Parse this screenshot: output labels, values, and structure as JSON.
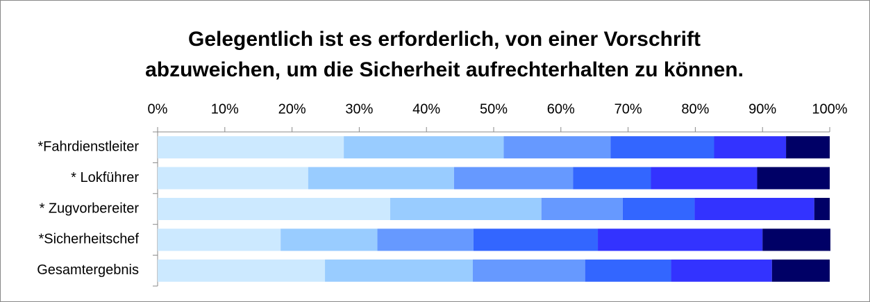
{
  "chart_data": {
    "type": "stacked_bar_horizontal",
    "title": [
      "Gelegentlich ist es erforderlich, von einer Vorschrift",
      "abzuweichen, um die Sicherheit aufrechterhalten zu können."
    ],
    "categories": [
      "*Fahrdienstleiter",
      "* Lokführer",
      "* Zugvorbereiter",
      "*Sicherheitschef",
      "Gesamtergebnis"
    ],
    "series": [
      {
        "color": "#cce9ff",
        "values": [
          27.7,
          22.4,
          34.6,
          18.3,
          24.9
        ]
      },
      {
        "color": "#99ccff",
        "values": [
          23.8,
          21.7,
          22.5,
          14.4,
          22.0
        ]
      },
      {
        "color": "#6699ff",
        "values": [
          15.9,
          17.7,
          12.1,
          14.3,
          16.7
        ]
      },
      {
        "color": "#3366ff",
        "values": [
          15.4,
          11.6,
          10.7,
          18.5,
          12.8
        ]
      },
      {
        "color": "#3333ff",
        "values": [
          10.7,
          15.8,
          17.8,
          24.5,
          15.0
        ]
      },
      {
        "color": "#000066",
        "values": [
          6.5,
          10.8,
          2.3,
          10.1,
          8.6
        ]
      }
    ],
    "xlim": [
      0,
      100
    ],
    "xticks": [
      {
        "value": 0,
        "label": "0%"
      },
      {
        "value": 10,
        "label": "10%"
      },
      {
        "value": 20,
        "label": "20%"
      },
      {
        "value": 30,
        "label": "30%"
      },
      {
        "value": 40,
        "label": "40%"
      },
      {
        "value": 50,
        "label": "50%"
      },
      {
        "value": 60,
        "label": "60%"
      },
      {
        "value": 70,
        "label": "70%"
      },
      {
        "value": 80,
        "label": "80%"
      },
      {
        "value": 90,
        "label": "90%"
      },
      {
        "value": 100,
        "label": "100%"
      }
    ]
  }
}
